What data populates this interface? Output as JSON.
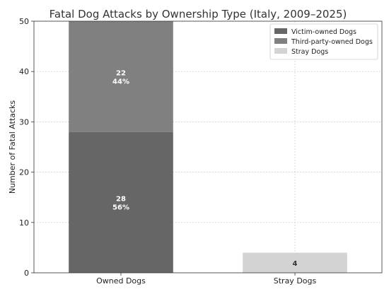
{
  "chart_data": {
    "type": "bar",
    "stacked": true,
    "title": "Fatal Dog Attacks by Ownership Type (Italy, 2009–2025)",
    "xlabel": "",
    "ylabel": "Number of Fatal Attacks",
    "categories": [
      "Owned Dogs",
      "Stray Dogs"
    ],
    "ylim": [
      0,
      50
    ],
    "yticks": [
      "0",
      "10",
      "20",
      "30",
      "40",
      "50"
    ],
    "grid": true,
    "legend_position": "top-right",
    "series": [
      {
        "name": "Victim-owned Dogs",
        "color": "#666666",
        "values": [
          28,
          0
        ],
        "labels": [
          [
            "28",
            "56%"
          ],
          null
        ]
      },
      {
        "name": "Third-party-owned Dogs",
        "color": "#808080",
        "values": [
          22,
          0
        ],
        "labels": [
          [
            "22",
            "44%"
          ],
          null
        ]
      },
      {
        "name": "Stray Dogs",
        "color": "#d3d3d3",
        "values": [
          0,
          4
        ],
        "labels": [
          null,
          [
            "4"
          ]
        ]
      }
    ]
  }
}
